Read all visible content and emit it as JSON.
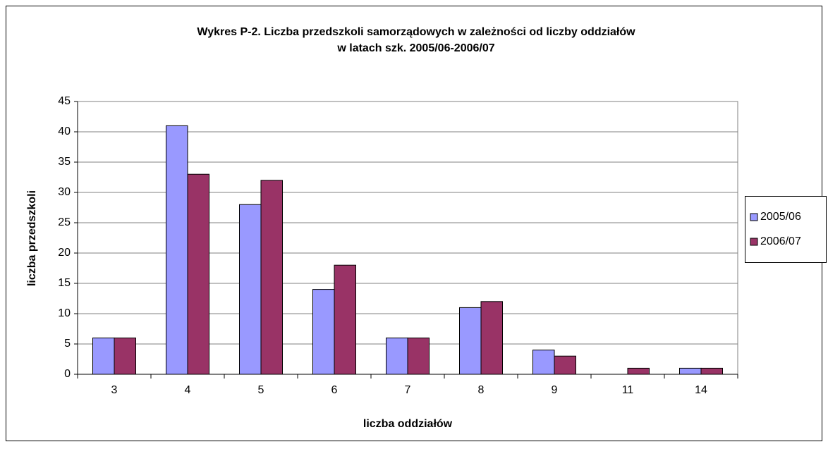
{
  "chart_data": {
    "type": "bar",
    "title": [
      "Wykres P-2. Liczba przedszkoli samorządowych w zależności od liczby oddziałów",
      "w latach szk. 2005/06-2006/07"
    ],
    "x_label": "liczba oddziałów",
    "y_label": "liczba przedszkoli",
    "categories": [
      "3",
      "4",
      "5",
      "6",
      "7",
      "8",
      "9",
      "11",
      "14"
    ],
    "series": [
      {
        "name": "2005/06",
        "color": "#9999ff",
        "values": [
          6,
          41,
          28,
          14,
          6,
          11,
          4,
          0,
          1
        ]
      },
      {
        "name": "2006/07",
        "color": "#993366",
        "values": [
          6,
          33,
          32,
          18,
          6,
          12,
          3,
          1,
          1
        ]
      }
    ],
    "ylim": [
      0,
      45
    ],
    "yticks": [
      0,
      5,
      10,
      15,
      20,
      25,
      30,
      35,
      40,
      45
    ],
    "grid": true,
    "legend": "right"
  }
}
